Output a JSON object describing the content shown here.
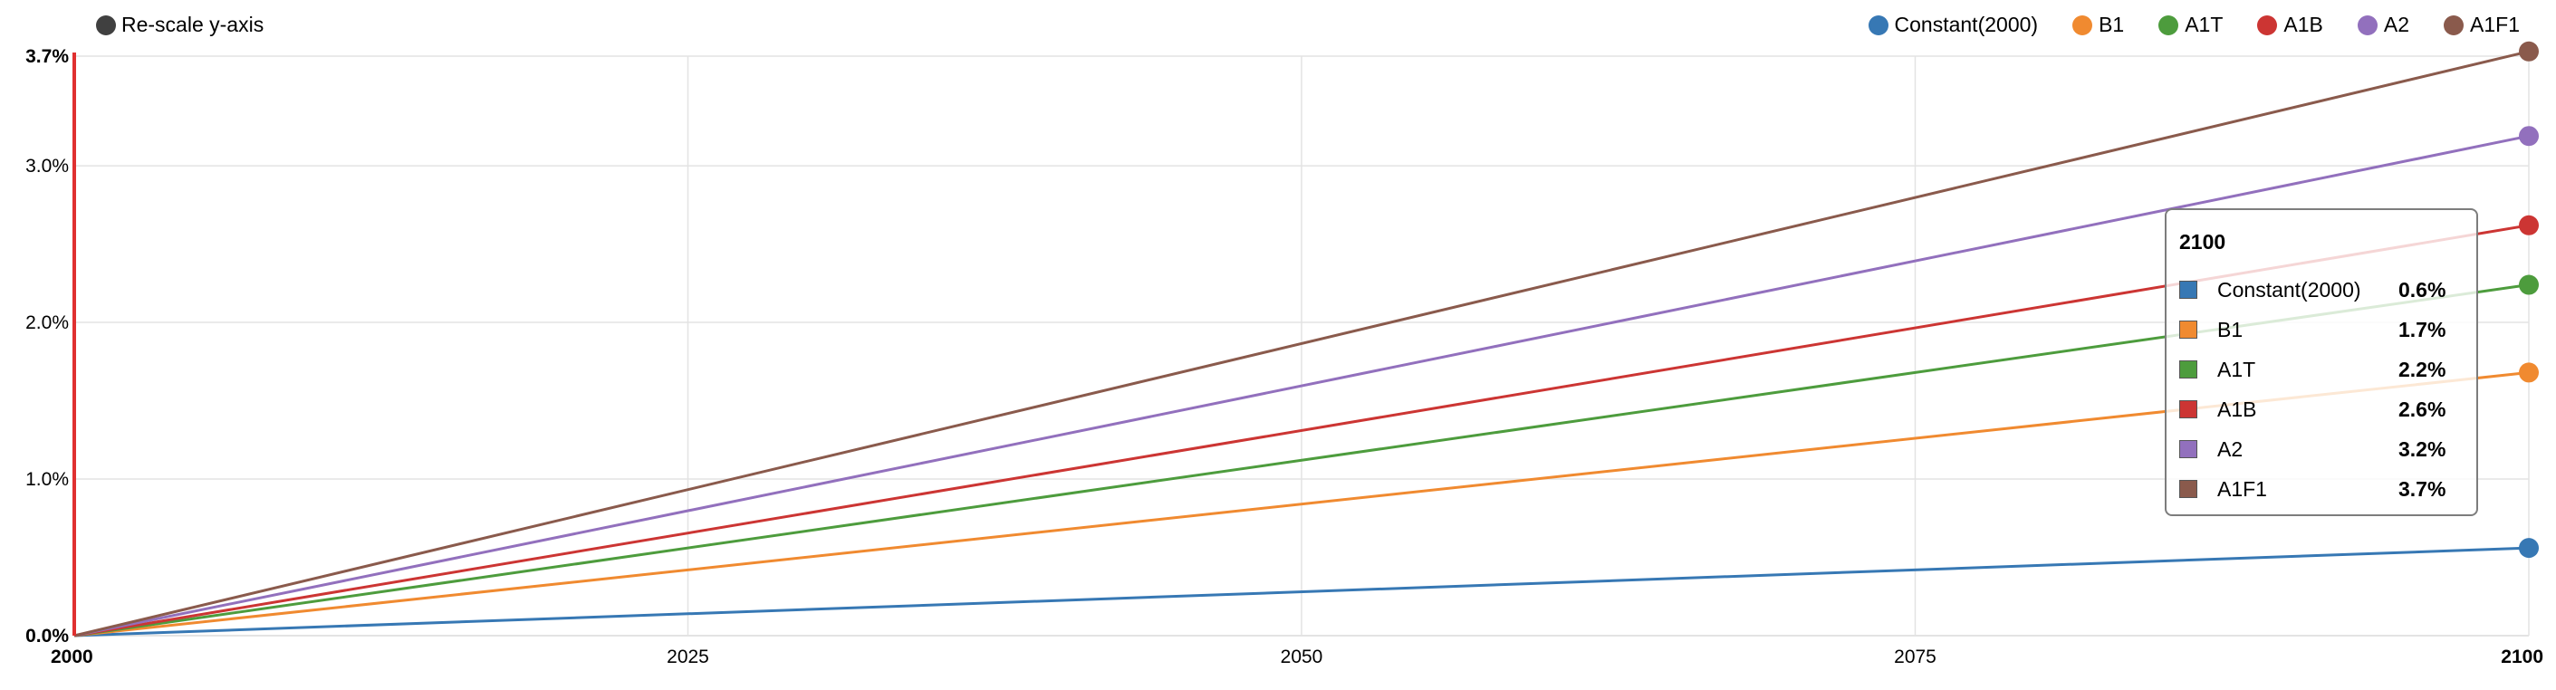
{
  "controls": {
    "rescale_label": "Re-scale y-axis"
  },
  "colors": {
    "Constant(2000)": "#3778b4",
    "B1": "#f08a30",
    "A1T": "#4d9c3d",
    "A1B": "#cc3533",
    "A2": "#9270bd",
    "A1F1": "#8a5a4c",
    "marker": "#e03030",
    "grid": "#e3e3e3",
    "axis": "#000000"
  },
  "tooltip": {
    "title": "2100",
    "rows": [
      {
        "name": "Constant(2000)",
        "value": "0.6%"
      },
      {
        "name": "B1",
        "value": "1.7%"
      },
      {
        "name": "A1T",
        "value": "2.2%"
      },
      {
        "name": "A1B",
        "value": "2.6%"
      },
      {
        "name": "A2",
        "value": "3.2%"
      },
      {
        "name": "A1F1",
        "value": "3.7%"
      }
    ]
  },
  "chart_data": {
    "type": "line",
    "title": "",
    "xlabel": "",
    "ylabel": "",
    "x": [
      2000,
      2100
    ],
    "xlim": [
      2000,
      2100
    ],
    "ylim": [
      0,
      3.7
    ],
    "x_ticks": [
      "2000",
      "2025",
      "2050",
      "2075",
      "2100"
    ],
    "x_tick_values": [
      2000,
      2025,
      2050,
      2075,
      2100
    ],
    "y_ticks": [
      "0.0%",
      "1.0%",
      "2.0%",
      "3.0%",
      "3.7%"
    ],
    "y_tick_values": [
      0,
      1,
      2,
      3,
      3.7
    ],
    "grid": true,
    "legend_position": "top-right",
    "series": [
      {
        "name": "Constant(2000)",
        "values": [
          0,
          0.56
        ]
      },
      {
        "name": "B1",
        "values": [
          0,
          1.68
        ]
      },
      {
        "name": "A1T",
        "values": [
          0,
          2.24
        ]
      },
      {
        "name": "A1B",
        "values": [
          0,
          2.62
        ]
      },
      {
        "name": "A2",
        "values": [
          0,
          3.19
        ]
      },
      {
        "name": "A1F1",
        "values": [
          0,
          3.73
        ]
      }
    ],
    "marker_x": 2000
  }
}
